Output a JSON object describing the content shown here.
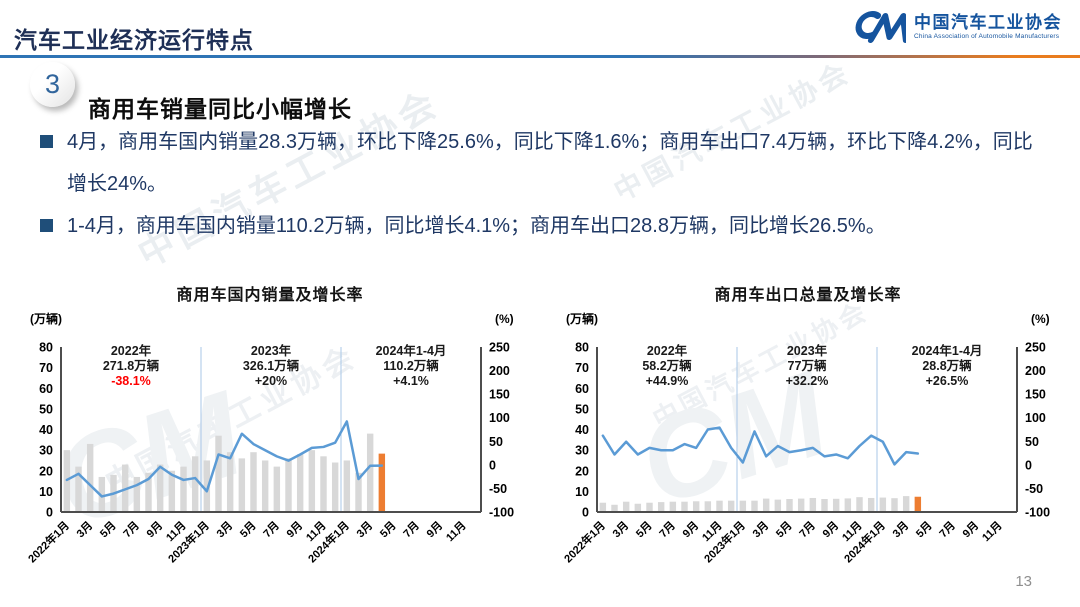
{
  "header": {
    "title": "汽车工业经济运行特点",
    "logo": {
      "mark": "CM",
      "name_cn": "中国汽车工业协会",
      "name_en": "China Association of Automobile Manufacturers"
    }
  },
  "section": {
    "number": "3",
    "heading": "商用车销量同比小幅增长"
  },
  "bullets": [
    "4月，商用车国内销量28.3万辆，环比下降25.6%，同比下降1.6%；商用车出口7.4万辆，环比下降4.2%，同比增长24%。",
    "1-4月，商用车国内销量110.2万辆，同比增长4.1%；商用车出口28.8万辆，同比增长26.5%。"
  ],
  "watermark": "中国汽车工业协会",
  "watermark_logo": "CM",
  "page_number": "13",
  "colors": {
    "header_rule_blue": "#2E74B5",
    "header_rule_orange": "#E97C1E",
    "logo_blue": "#15549E",
    "bullet_text": "#1F3864",
    "negative_red": "#FF0000"
  },
  "chart_data": [
    {
      "type": "bar+line",
      "title": "商用车国内销量及增长率",
      "unit_left": "(万辆)",
      "unit_right": "(%)",
      "legend_position": "none",
      "grid": false,
      "left_axis": {
        "min": 0,
        "max": 80,
        "ticks": [
          80,
          70,
          60,
          50,
          40,
          30,
          20,
          10,
          0
        ]
      },
      "right_axis": {
        "min": -100,
        "max": 250,
        "ticks": [
          250,
          200,
          150,
          100,
          50,
          0,
          -50,
          -100
        ]
      },
      "months_span": 36,
      "x_labels": [
        "2022年1月",
        "3月",
        "5月",
        "7月",
        "9月",
        "11月",
        "2023年1月",
        "3月",
        "5月",
        "7月",
        "9月",
        "11月",
        "2024年1月",
        "3月",
        "5月",
        "7月",
        "9月",
        "11月"
      ],
      "year_separators": [
        12,
        24
      ],
      "bars": {
        "name": "国内销量(万辆)",
        "color": "#D8D8D8",
        "highlight_last_color": "#ED7D31",
        "values": [
          30,
          22,
          33,
          17,
          18,
          23,
          17,
          19,
          23,
          20,
          22,
          27,
          25,
          37,
          29,
          26,
          29,
          25,
          22,
          26,
          28,
          30,
          27,
          24,
          25,
          19,
          38,
          28.3
        ]
      },
      "line": {
        "name": "增长率(%)",
        "color": "#5B9BD5",
        "values": [
          -32,
          -19,
          -43,
          -67,
          -61,
          -52,
          -43,
          -30,
          -4,
          -21,
          -32,
          -28,
          -56,
          22,
          14,
          66,
          44,
          31,
          18,
          9,
          22,
          36,
          38,
          47,
          92,
          -30,
          -2,
          -1.6
        ]
      },
      "annotations": [
        {
          "title": "2022年",
          "volume": "271.8万辆",
          "growth": "-38.1%",
          "growth_color": "#FF0000"
        },
        {
          "title": "2023年",
          "volume": "326.1万辆",
          "growth": "+20%",
          "growth_color": "#1a1a1a"
        },
        {
          "title": "2024年1-4月",
          "volume": "110.2万辆",
          "growth": "+4.1%",
          "growth_color": "#1a1a1a"
        }
      ]
    },
    {
      "type": "bar+line",
      "title": "商用车出口总量及增长率",
      "unit_left": "(万辆)",
      "unit_right": "(%)",
      "legend_position": "none",
      "grid": false,
      "left_axis": {
        "min": 0,
        "max": 80,
        "ticks": [
          80,
          70,
          60,
          50,
          40,
          30,
          20,
          10,
          0
        ]
      },
      "right_axis": {
        "min": -100,
        "max": 250,
        "ticks": [
          250,
          200,
          150,
          100,
          50,
          0,
          -50,
          -100
        ]
      },
      "months_span": 36,
      "x_labels": [
        "2022年1月",
        "3月",
        "5月",
        "7月",
        "9月",
        "11月",
        "2023年1月",
        "3月",
        "5月",
        "7月",
        "9月",
        "11月",
        "2024年1月",
        "3月",
        "5月",
        "7月",
        "9月",
        "11月"
      ],
      "year_separators": [
        12,
        24
      ],
      "bars": {
        "name": "出口量(万辆)",
        "color": "#D8D8D8",
        "highlight_last_color": "#ED7D31",
        "values": [
          4.5,
          3.5,
          5,
          4,
          4.5,
          4.8,
          5,
          5,
          5.2,
          5.2,
          5.5,
          5.5,
          5.5,
          5.5,
          6.5,
          6,
          6.3,
          6.5,
          6.8,
          6.3,
          6.4,
          6.6,
          7.2,
          6.8,
          7,
          6.7,
          7.7,
          7.4
        ]
      },
      "line": {
        "name": "增长率(%)",
        "color": "#5B9BD5",
        "values": [
          62,
          22,
          49,
          22,
          36,
          31,
          31,
          44,
          36,
          75,
          79,
          36,
          5,
          71,
          18,
          40,
          27,
          31,
          36,
          18,
          22,
          14,
          40,
          62,
          49,
          1,
          27,
          24
        ]
      },
      "annotations": [
        {
          "title": "2022年",
          "volume": "58.2万辆",
          "growth": "+44.9%",
          "growth_color": "#1a1a1a"
        },
        {
          "title": "2023年",
          "volume": "77万辆",
          "growth": "+32.2%",
          "growth_color": "#1a1a1a"
        },
        {
          "title": "2024年1-4月",
          "volume": "28.8万辆",
          "growth": "+26.5%",
          "growth_color": "#1a1a1a"
        }
      ]
    }
  ]
}
